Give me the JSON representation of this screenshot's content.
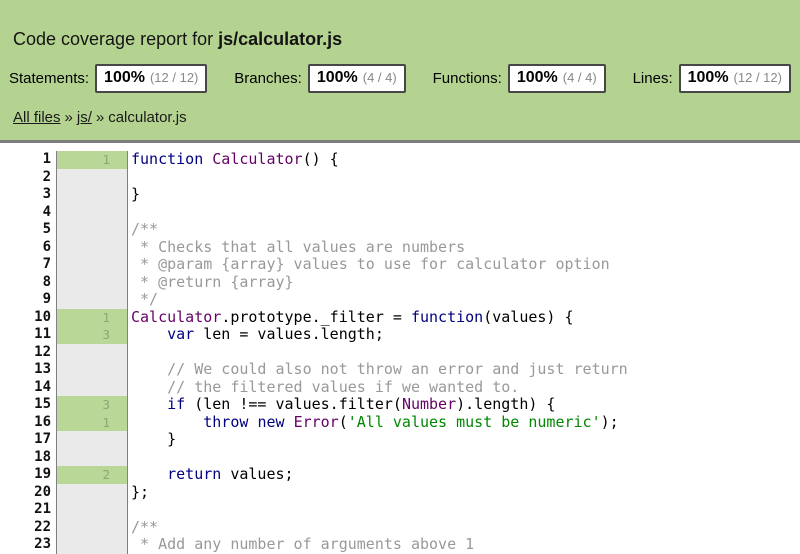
{
  "header": {
    "title_prefix": "Code coverage report for ",
    "title_file": "js/calculator.js",
    "stats": [
      {
        "label": "Statements:",
        "pct": "100%",
        "fraction": "(12 / 12)"
      },
      {
        "label": "Branches:",
        "pct": "100%",
        "fraction": "(4 / 4)"
      },
      {
        "label": "Functions:",
        "pct": "100%",
        "fraction": "(4 / 4)"
      },
      {
        "label": "Lines:",
        "pct": "100%",
        "fraction": "(12 / 12)"
      }
    ],
    "breadcrumb": {
      "all_files": "All files",
      "folder": "js/",
      "separator": "»",
      "current": "calculator.js"
    }
  },
  "colors": {
    "header_bg": "#b4d391",
    "header_border": "#7d7d7d",
    "box_border": "#474747",
    "fraction_text": "#888888",
    "link_text": "#1a1a1a",
    "neutral_bg": "#eaeaea",
    "covered_bg": "#b9d797",
    "count_text": "#8fa573",
    "divider": "#808080",
    "tok_kwd": "#000080",
    "tok_typ": "#660066",
    "tok_str": "#008800",
    "tok_com": "#999999",
    "tok_pln": "#000000"
  },
  "code": {
    "lines": [
      {
        "num": 1,
        "count": "1",
        "covered": true,
        "tokens": [
          [
            "kwd",
            "function"
          ],
          [
            "pln",
            " "
          ],
          [
            "typ",
            "Calculator"
          ],
          [
            "pln",
            "() {"
          ]
        ]
      },
      {
        "num": 2,
        "count": "",
        "covered": false,
        "tokens": []
      },
      {
        "num": 3,
        "count": "",
        "covered": false,
        "tokens": [
          [
            "pln",
            "}"
          ]
        ]
      },
      {
        "num": 4,
        "count": "",
        "covered": false,
        "tokens": []
      },
      {
        "num": 5,
        "count": "",
        "covered": false,
        "tokens": [
          [
            "com",
            "/**"
          ]
        ]
      },
      {
        "num": 6,
        "count": "",
        "covered": false,
        "tokens": [
          [
            "com",
            " * Checks that all values are numbers"
          ]
        ]
      },
      {
        "num": 7,
        "count": "",
        "covered": false,
        "tokens": [
          [
            "com",
            " * @param {array} values to use for calculator option"
          ]
        ]
      },
      {
        "num": 8,
        "count": "",
        "covered": false,
        "tokens": [
          [
            "com",
            " * @return {array}"
          ]
        ]
      },
      {
        "num": 9,
        "count": "",
        "covered": false,
        "tokens": [
          [
            "com",
            " */"
          ]
        ]
      },
      {
        "num": 10,
        "count": "1",
        "covered": true,
        "tokens": [
          [
            "typ",
            "Calculator"
          ],
          [
            "pln",
            ".prototype._filter = "
          ],
          [
            "kwd",
            "function"
          ],
          [
            "pln",
            "(values) {"
          ]
        ]
      },
      {
        "num": 11,
        "count": "3",
        "covered": true,
        "tokens": [
          [
            "pln",
            "    "
          ],
          [
            "kwd",
            "var"
          ],
          [
            "pln",
            " len = values.length;"
          ]
        ]
      },
      {
        "num": 12,
        "count": "",
        "covered": false,
        "tokens": []
      },
      {
        "num": 13,
        "count": "",
        "covered": false,
        "tokens": [
          [
            "com",
            "    // We could also not throw an error and just return"
          ]
        ]
      },
      {
        "num": 14,
        "count": "",
        "covered": false,
        "tokens": [
          [
            "com",
            "    // the filtered values if we wanted to."
          ]
        ]
      },
      {
        "num": 15,
        "count": "3",
        "covered": true,
        "tokens": [
          [
            "pln",
            "    "
          ],
          [
            "kwd",
            "if"
          ],
          [
            "pln",
            " (len !== values.filter("
          ],
          [
            "typ",
            "Number"
          ],
          [
            "pln",
            ").length) {"
          ]
        ]
      },
      {
        "num": 16,
        "count": "1",
        "covered": true,
        "tokens": [
          [
            "pln",
            "        "
          ],
          [
            "kwd",
            "throw"
          ],
          [
            "pln",
            " "
          ],
          [
            "kwd",
            "new"
          ],
          [
            "pln",
            " "
          ],
          [
            "typ",
            "Error"
          ],
          [
            "pln",
            "("
          ],
          [
            "str",
            "'All values must be numeric'"
          ],
          [
            "pln",
            ");"
          ]
        ]
      },
      {
        "num": 17,
        "count": "",
        "covered": false,
        "tokens": [
          [
            "pln",
            "    }"
          ]
        ]
      },
      {
        "num": 18,
        "count": "",
        "covered": false,
        "tokens": []
      },
      {
        "num": 19,
        "count": "2",
        "covered": true,
        "tokens": [
          [
            "pln",
            "    "
          ],
          [
            "kwd",
            "return"
          ],
          [
            "pln",
            " values;"
          ]
        ]
      },
      {
        "num": 20,
        "count": "",
        "covered": false,
        "tokens": [
          [
            "pln",
            "};"
          ]
        ]
      },
      {
        "num": 21,
        "count": "",
        "covered": false,
        "tokens": []
      },
      {
        "num": 22,
        "count": "",
        "covered": false,
        "tokens": [
          [
            "com",
            "/**"
          ]
        ]
      },
      {
        "num": 23,
        "count": "",
        "covered": false,
        "tokens": [
          [
            "com",
            " * Add any number of arguments above 1"
          ]
        ]
      }
    ]
  }
}
